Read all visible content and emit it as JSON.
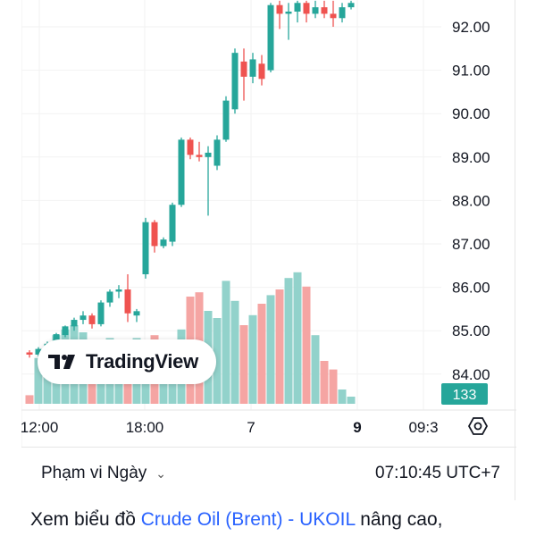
{
  "chart_data": {
    "type": "candlestick",
    "y_ticks": [
      "92.00",
      "91.00",
      "90.00",
      "89.00",
      "88.00",
      "87.00",
      "86.00",
      "85.00",
      "84.00"
    ],
    "y_tick_values": [
      92,
      91,
      90,
      89,
      88,
      87,
      86,
      85,
      84
    ],
    "ylim": [
      83.3,
      92.6
    ],
    "x_ticks": [
      "12:00",
      "18:00",
      "7",
      "9",
      "09:3"
    ],
    "volume_badge": "133",
    "up_color": "#26a69a",
    "down_color": "#ef5350",
    "up_volume_color": "#92d2cb",
    "down_volume_color": "#f5a5a3",
    "candles": [
      {
        "o": 84.5,
        "h": 84.55,
        "l": 84.38,
        "c": 84.45
      },
      {
        "o": 84.45,
        "h": 84.62,
        "l": 84.4,
        "c": 84.58
      },
      {
        "o": 84.58,
        "h": 84.75,
        "l": 84.52,
        "c": 84.7
      },
      {
        "o": 84.7,
        "h": 84.95,
        "l": 84.65,
        "c": 84.92
      },
      {
        "o": 84.9,
        "h": 85.12,
        "l": 84.85,
        "c": 85.1
      },
      {
        "o": 85.1,
        "h": 85.3,
        "l": 85.0,
        "c": 85.25
      },
      {
        "o": 85.25,
        "h": 85.45,
        "l": 85.15,
        "c": 85.35
      },
      {
        "o": 85.35,
        "h": 85.4,
        "l": 85.05,
        "c": 85.15
      },
      {
        "o": 85.15,
        "h": 85.7,
        "l": 85.1,
        "c": 85.65
      },
      {
        "o": 85.65,
        "h": 85.95,
        "l": 85.55,
        "c": 85.9
      },
      {
        "o": 85.9,
        "h": 86.05,
        "l": 85.75,
        "c": 85.95
      },
      {
        "o": 85.95,
        "h": 86.3,
        "l": 85.2,
        "c": 85.4
      },
      {
        "o": 85.35,
        "h": 85.5,
        "l": 85.2,
        "c": 85.45
      },
      {
        "o": 86.3,
        "h": 87.6,
        "l": 86.2,
        "c": 87.5
      },
      {
        "o": 87.5,
        "h": 87.55,
        "l": 86.8,
        "c": 86.95
      },
      {
        "o": 86.95,
        "h": 87.15,
        "l": 86.9,
        "c": 87.1
      },
      {
        "o": 87.05,
        "h": 87.95,
        "l": 86.95,
        "c": 87.9
      },
      {
        "o": 87.9,
        "h": 89.45,
        "l": 87.85,
        "c": 89.4
      },
      {
        "o": 89.4,
        "h": 89.45,
        "l": 88.95,
        "c": 89.05
      },
      {
        "o": 89.05,
        "h": 89.35,
        "l": 88.9,
        "c": 89.0
      },
      {
        "o": 89.0,
        "h": 89.25,
        "l": 87.65,
        "c": 89.1
      },
      {
        "o": 88.8,
        "h": 89.5,
        "l": 88.7,
        "c": 89.4
      },
      {
        "o": 89.4,
        "h": 90.4,
        "l": 89.35,
        "c": 90.3
      },
      {
        "o": 90.1,
        "h": 91.5,
        "l": 90.0,
        "c": 91.4
      },
      {
        "o": 91.2,
        "h": 91.5,
        "l": 90.3,
        "c": 90.85
      },
      {
        "o": 90.85,
        "h": 91.4,
        "l": 90.7,
        "c": 91.25
      },
      {
        "o": 91.15,
        "h": 91.35,
        "l": 90.65,
        "c": 90.8
      },
      {
        "o": 91.0,
        "h": 92.55,
        "l": 90.95,
        "c": 92.5
      },
      {
        "o": 92.5,
        "h": 92.6,
        "l": 91.95,
        "c": 92.3
      },
      {
        "o": 92.3,
        "h": 92.55,
        "l": 91.7,
        "c": 92.35
      },
      {
        "o": 92.35,
        "h": 92.6,
        "l": 92.1,
        "c": 92.55
      },
      {
        "o": 92.55,
        "h": 92.6,
        "l": 92.1,
        "c": 92.3
      },
      {
        "o": 92.3,
        "h": 92.6,
        "l": 92.2,
        "c": 92.45
      },
      {
        "o": 92.45,
        "h": 92.6,
        "l": 92.2,
        "c": 92.3
      },
      {
        "o": 92.3,
        "h": 92.6,
        "l": 92.0,
        "c": 92.2
      },
      {
        "o": 92.2,
        "h": 92.55,
        "l": 92.1,
        "c": 92.45
      },
      {
        "o": 92.45,
        "h": 92.6,
        "l": 92.4,
        "c": 92.55
      }
    ],
    "volumes": [
      0.06,
      0.32,
      0.4,
      0.48,
      0.52,
      0.55,
      0.5,
      0.42,
      0.44,
      0.46,
      0.4,
      0.38,
      0.46,
      0.4,
      0.48,
      0.45,
      0.44,
      0.52,
      0.75,
      0.78,
      0.65,
      0.6,
      0.86,
      0.72,
      0.55,
      0.62,
      0.7,
      0.76,
      0.8,
      0.88,
      0.92,
      0.82,
      0.48,
      0.3,
      0.24,
      0.1,
      0.05
    ]
  },
  "range_selector": {
    "label": "Phạm vi Ngày",
    "chevron_icon": "chevron-down-icon"
  },
  "clock": "07:10:45 UTC+7",
  "settings_icon": "settings-hexagon-icon",
  "badge": {
    "logo_icon": "tradingview-logo-icon",
    "text": "TradingView"
  },
  "caption": {
    "prefix": "Xem biểu đồ ",
    "link": "Crude Oil (Brent) - UKOIL",
    "suffix": " nâng cao,"
  }
}
